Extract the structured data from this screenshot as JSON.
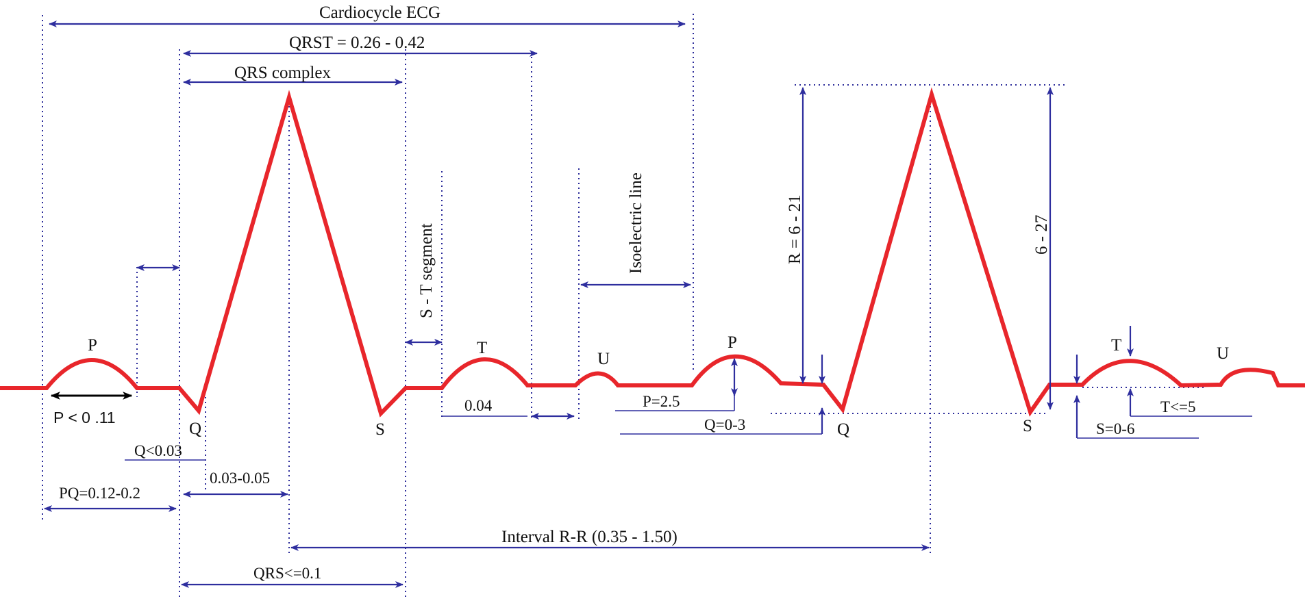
{
  "colors": {
    "waveform": "#e8262b",
    "annotation": "#2e2e9e",
    "highlight_arrow": "#000000",
    "text": "#111111"
  },
  "labels": {
    "cardiocycle": "Cardiocycle ECG",
    "qrst": "QRST = 0.26 - 0.42",
    "qrs_complex": "QRS complex",
    "st_segment": "S - T  segment",
    "isoelectric": "Isoelectric line",
    "r_amp": "R = 6 - 21",
    "r_amp2": "6 - 27",
    "p1": "P",
    "q1": "Q",
    "s1": "S",
    "t1": "T",
    "u1": "U",
    "p2": "P",
    "q2": "Q",
    "s2": "S",
    "t2": "T",
    "u2": "U",
    "p_dur": "P < 0 .11",
    "q_dur": "Q<0.03",
    "pq": "PQ=0.12-0.2",
    "r_time": "0.03-0.05",
    "qrs_dur": "QRS<=0.1",
    "rr": "Interval R-R (0.35 - 1.50)",
    "t_004": "0.04",
    "p_amp": "P=2.5",
    "q_amp": "Q=0-3",
    "s_amp": "S=0-6",
    "t_amp": "T<=5"
  }
}
